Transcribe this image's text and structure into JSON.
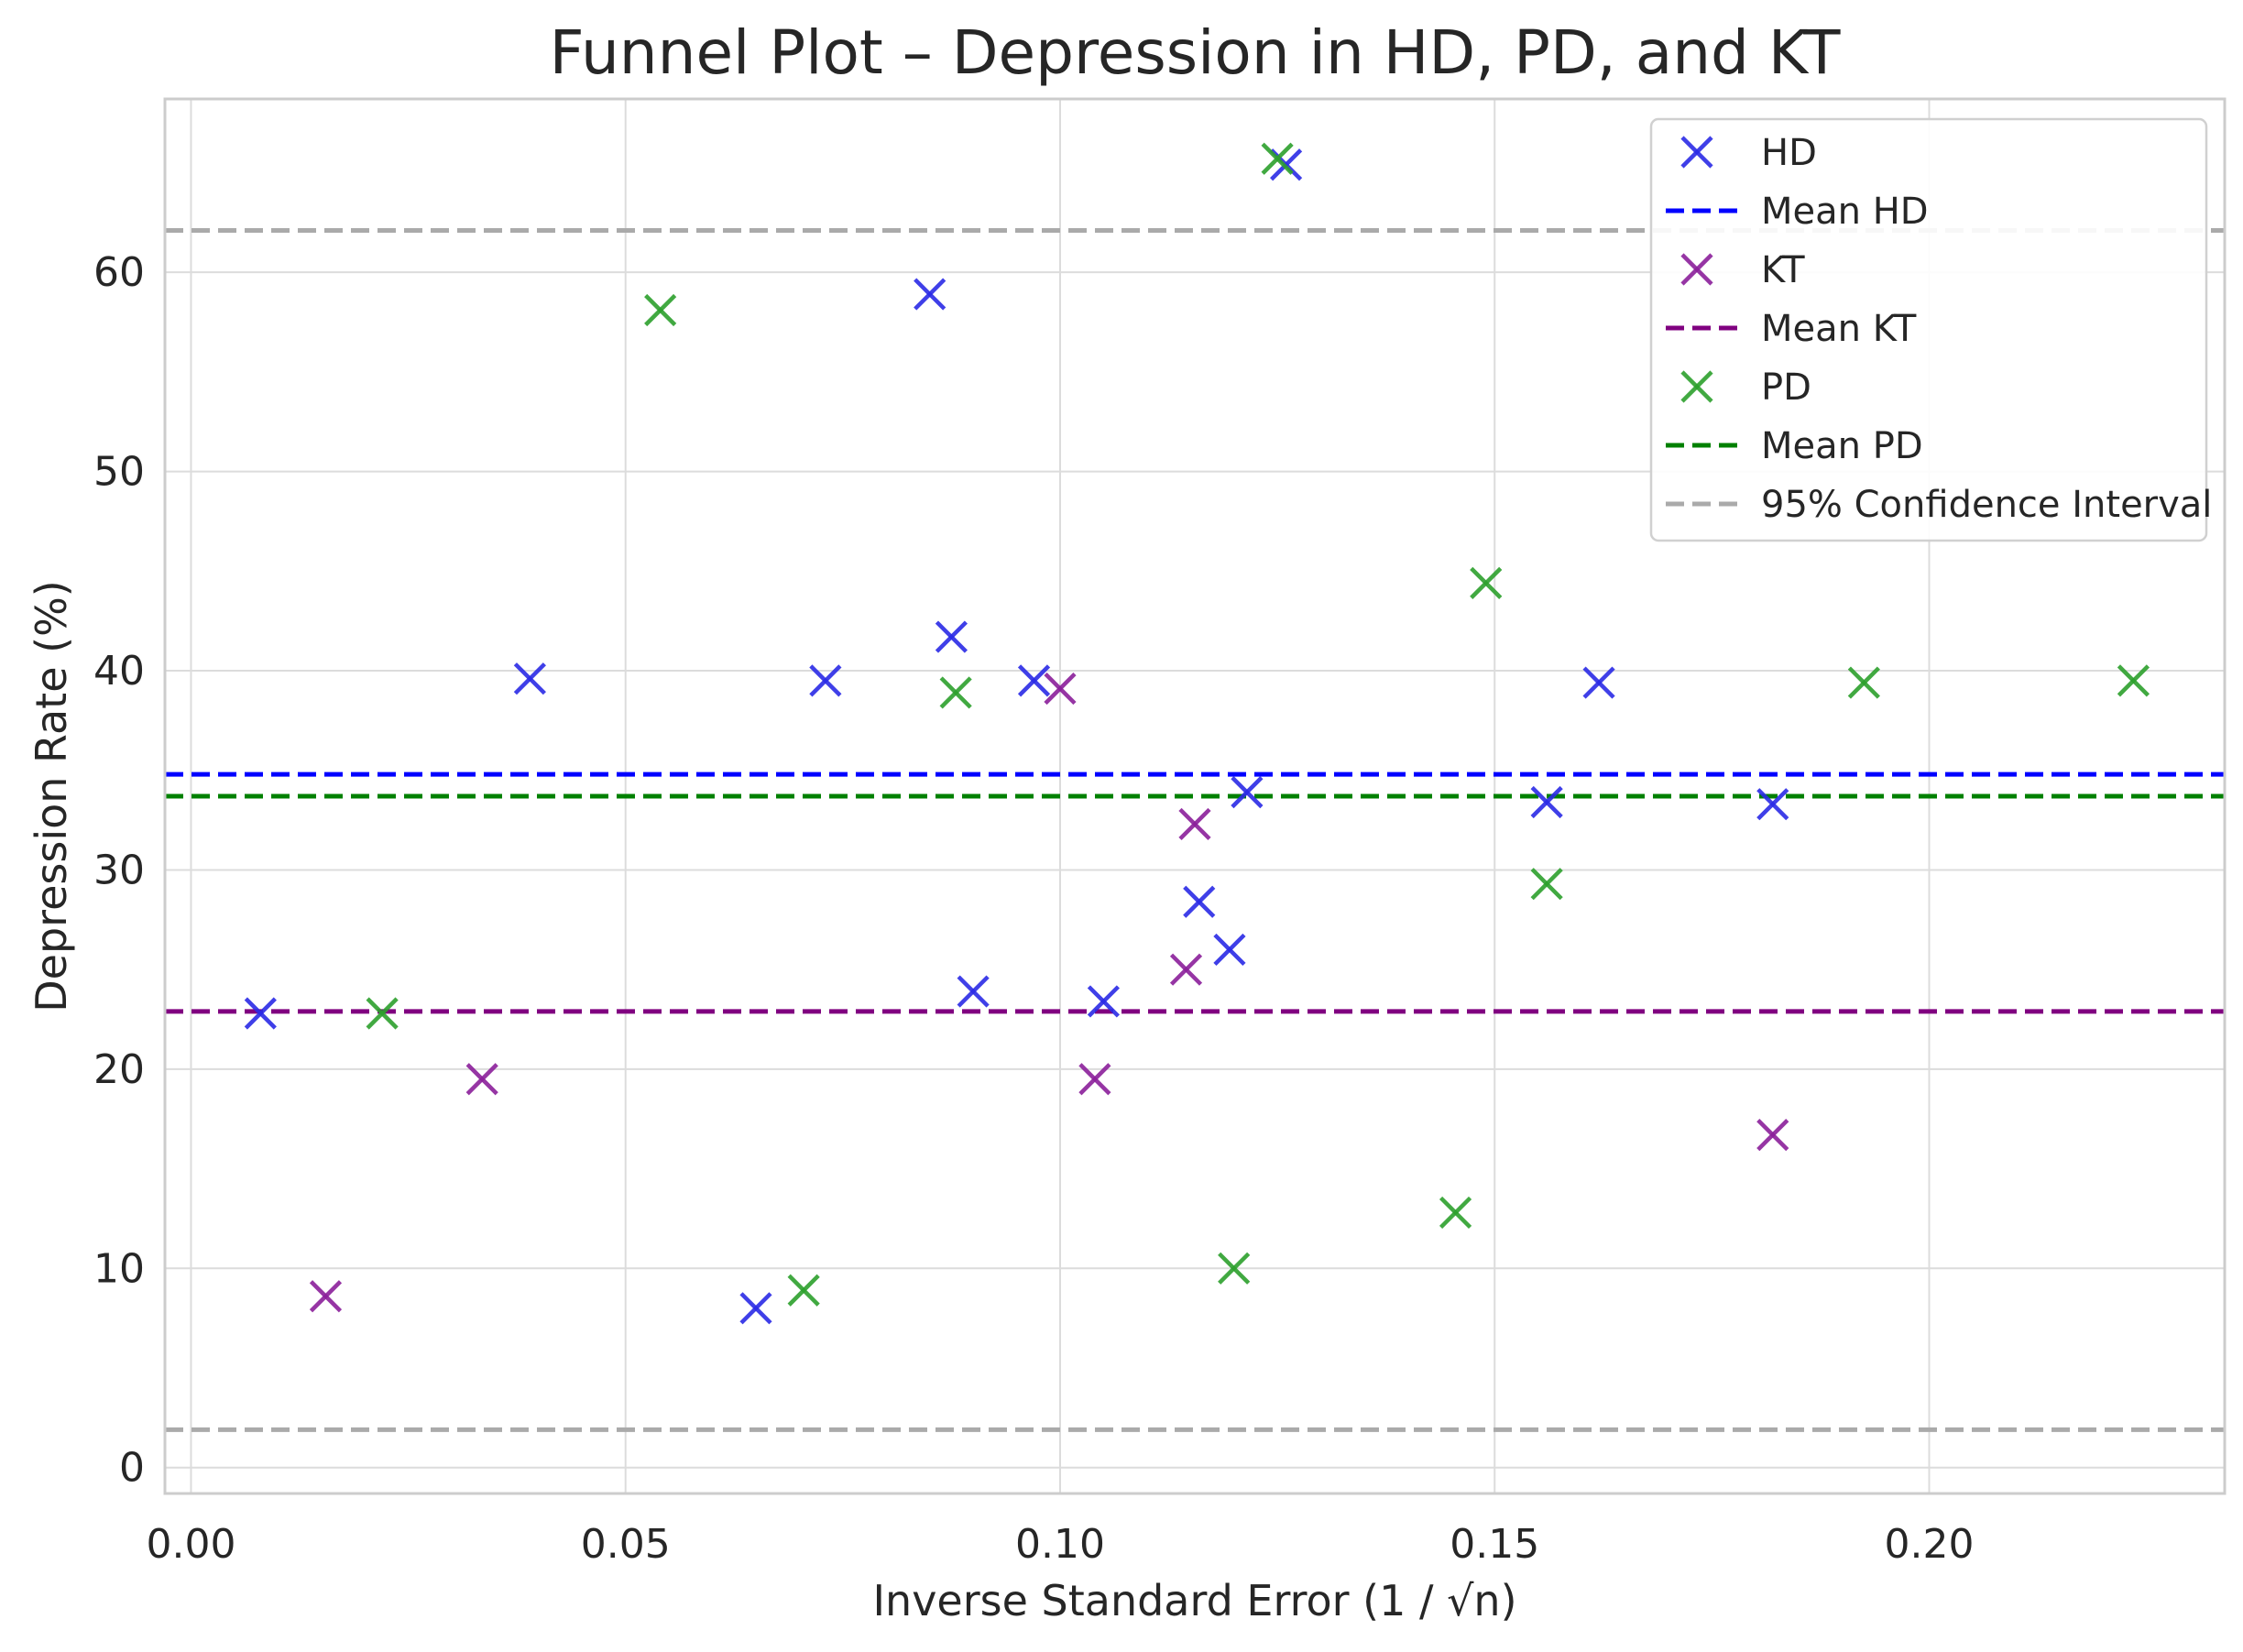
{
  "chart_data": {
    "type": "scatter",
    "title": "Funnel Plot – Depression in HD, PD, and KT",
    "xlabel": "Inverse Standard Error (1 / √n)",
    "ylabel": "Depression Rate (%)",
    "xlim": [
      -0.003,
      0.234
    ],
    "ylim": [
      -1.3,
      68.7
    ],
    "xticks": [
      0.0,
      0.05,
      0.1,
      0.15,
      0.2
    ],
    "xtick_labels": [
      "0.00",
      "0.05",
      "0.10",
      "0.15",
      "0.20"
    ],
    "yticks": [
      0,
      10,
      20,
      30,
      40,
      50,
      60
    ],
    "ytick_labels": [
      "0",
      "10",
      "20",
      "30",
      "40",
      "50",
      "60"
    ],
    "grid": true,
    "legend_position": "top-right",
    "series": [
      {
        "name": "HD",
        "color": "#2a2ae6",
        "marker": "x",
        "points": [
          [
            0.008,
            22.8
          ],
          [
            0.039,
            39.6
          ],
          [
            0.065,
            8.0
          ],
          [
            0.073,
            39.5
          ],
          [
            0.085,
            58.9
          ],
          [
            0.0875,
            41.7
          ],
          [
            0.09,
            23.9
          ],
          [
            0.097,
            39.5
          ],
          [
            0.105,
            23.4
          ],
          [
            0.116,
            28.4
          ],
          [
            0.1195,
            26.0
          ],
          [
            0.1215,
            33.9
          ],
          [
            0.126,
            65.4
          ],
          [
            0.156,
            33.4
          ],
          [
            0.162,
            39.4
          ],
          [
            0.182,
            33.3
          ]
        ]
      },
      {
        "name": "Mean HD",
        "type": "hline",
        "color": "#0000ff",
        "y": 34.8
      },
      {
        "name": "KT",
        "color": "#8b1f9a",
        "marker": "x",
        "points": [
          [
            0.0155,
            8.6
          ],
          [
            0.0335,
            19.5
          ],
          [
            0.1,
            39.1
          ],
          [
            0.104,
            19.5
          ],
          [
            0.1145,
            25.0
          ],
          [
            0.1155,
            32.3
          ],
          [
            0.182,
            16.7
          ]
        ]
      },
      {
        "name": "Mean KT",
        "type": "hline",
        "color": "#800080",
        "y": 22.9
      },
      {
        "name": "PD",
        "color": "#2ca02c",
        "marker": "x",
        "points": [
          [
            0.022,
            22.8
          ],
          [
            0.054,
            58.1
          ],
          [
            0.0705,
            8.9
          ],
          [
            0.088,
            38.9
          ],
          [
            0.12,
            10.0
          ],
          [
            0.125,
            65.7
          ],
          [
            0.1455,
            12.8
          ],
          [
            0.149,
            44.4
          ],
          [
            0.156,
            29.3
          ],
          [
            0.1925,
            39.4
          ],
          [
            0.2235,
            39.5
          ]
        ]
      },
      {
        "name": "Mean PD",
        "type": "hline",
        "color": "#008000",
        "y": 33.7
      },
      {
        "name": "95% Confidence Interval",
        "type": "hline",
        "color": "#aaaaaa",
        "y_values": [
          62.1,
          1.9
        ]
      }
    ]
  }
}
